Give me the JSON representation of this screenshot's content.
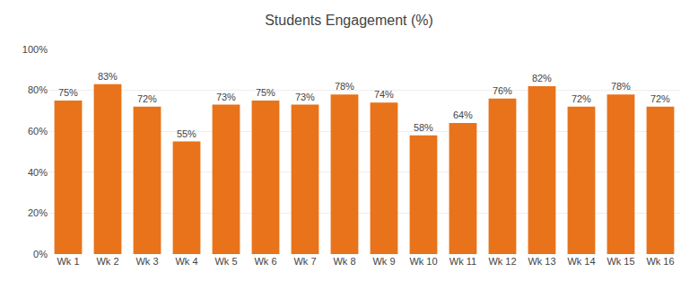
{
  "chart_data": {
    "type": "bar",
    "title": "Students Engagement (%)",
    "categories": [
      "Wk 1",
      "Wk 2",
      "Wk 3",
      "Wk 4",
      "Wk 5",
      "Wk 6",
      "Wk 7",
      "Wk 8",
      "Wk 9",
      "Wk 10",
      "Wk 11",
      "Wk 12",
      "Wk 13",
      "Wk 14",
      "Wk 15",
      "Wk 16"
    ],
    "values": [
      75,
      83,
      72,
      55,
      73,
      75,
      73,
      78,
      74,
      58,
      64,
      76,
      82,
      72,
      78,
      72
    ],
    "value_labels": [
      "75%",
      "83%",
      "72%",
      "55%",
      "73%",
      "75%",
      "73%",
      "78%",
      "74%",
      "58%",
      "64%",
      "76%",
      "82%",
      "72%",
      "78%",
      "72%"
    ],
    "color": "#E8731A",
    "ylim": [
      0,
      100
    ],
    "yticks": [
      {
        "value": 0,
        "label": "0%"
      },
      {
        "value": 20,
        "label": "20%"
      },
      {
        "value": 40,
        "label": "40%"
      },
      {
        "value": 60,
        "label": "60%"
      },
      {
        "value": 80,
        "label": "80%"
      },
      {
        "value": 100,
        "label": "100%"
      }
    ],
    "grid": true,
    "data_labels": true
  }
}
